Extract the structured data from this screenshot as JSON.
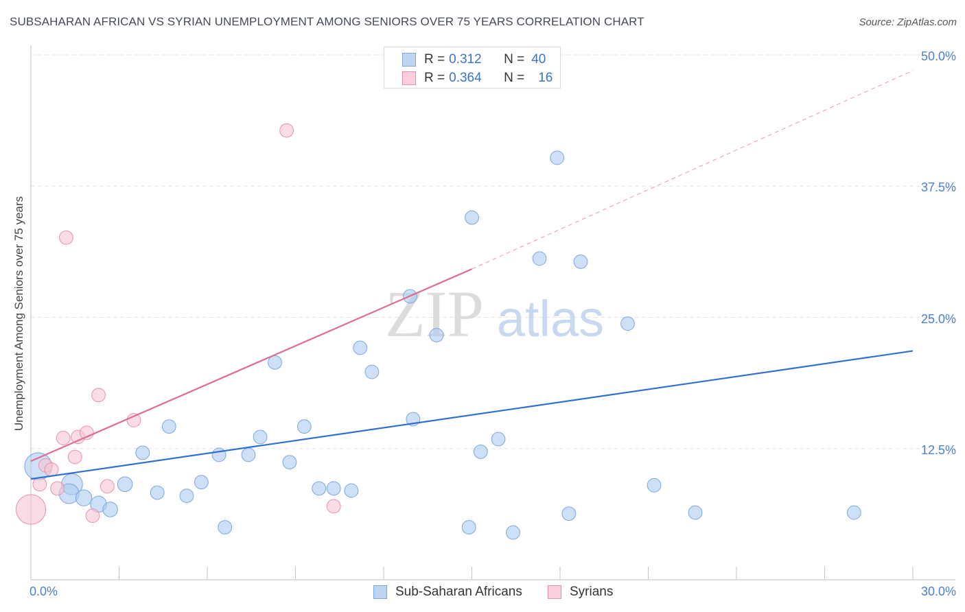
{
  "chart_data": {
    "type": "scatter",
    "title": "SUBSAHARAN AFRICAN VS SYRIAN UNEMPLOYMENT AMONG SENIORS OVER 75 YEARS CORRELATION CHART",
    "source": "Source: ZipAtlas.com",
    "xlabel": "",
    "ylabel": "Unemployment Among Seniors over 75 years",
    "xlim": [
      0,
      30
    ],
    "ylim": [
      0,
      50
    ],
    "x_tick_labels": {
      "min": "0.0%",
      "max": "30.0%"
    },
    "y_tick_labels": [
      {
        "value": 12.5,
        "label": "12.5%"
      },
      {
        "value": 25.0,
        "label": "25.0%"
      },
      {
        "value": 37.5,
        "label": "37.5%"
      },
      {
        "value": 50.0,
        "label": "50.0%"
      }
    ],
    "watermark": {
      "zip": "ZIP",
      "atlas": "atlas"
    },
    "legend_top": [
      {
        "r_label": "R =",
        "r_value": "0.312",
        "n_label": "N =",
        "n_value": "40"
      },
      {
        "r_label": "R =",
        "r_value": "0.364",
        "n_label": "N =",
        "n_value": "16"
      }
    ],
    "series": [
      {
        "name": "Sub-Saharan Africans",
        "color": "#aecbf0",
        "stroke": "#7aa6dc",
        "line_color": "#2f6fcf",
        "trend": {
          "x0": 0,
          "y0": 9.6,
          "x1": 30,
          "y1": 21.8,
          "dashed_to": null
        },
        "points": [
          [
            0.25,
            10.8,
            2.2
          ],
          [
            1.4,
            9.1,
            1.7
          ],
          [
            1.3,
            8.2,
            1.6
          ],
          [
            1.8,
            7.8,
            1.3
          ],
          [
            2.3,
            7.2,
            1.3
          ],
          [
            2.7,
            6.7,
            1.2
          ],
          [
            3.2,
            9.1,
            1.2
          ],
          [
            3.8,
            12.1,
            1.1
          ],
          [
            4.3,
            8.3,
            1.1
          ],
          [
            4.7,
            14.6,
            1.1
          ],
          [
            5.3,
            8.0,
            1.1
          ],
          [
            5.8,
            9.3,
            1.1
          ],
          [
            6.4,
            11.9,
            1.1
          ],
          [
            6.6,
            5.0,
            1.1
          ],
          [
            7.4,
            11.9,
            1.1
          ],
          [
            7.8,
            13.6,
            1.1
          ],
          [
            8.3,
            20.7,
            1.1
          ],
          [
            8.8,
            11.2,
            1.1
          ],
          [
            9.3,
            14.6,
            1.1
          ],
          [
            9.8,
            8.7,
            1.1
          ],
          [
            10.3,
            8.7,
            1.1
          ],
          [
            10.9,
            8.5,
            1.1
          ],
          [
            11.2,
            22.1,
            1.1
          ],
          [
            11.6,
            19.8,
            1.1
          ],
          [
            12.9,
            27.0,
            1.1
          ],
          [
            13.0,
            15.3,
            1.1
          ],
          [
            13.8,
            23.3,
            1.1
          ],
          [
            15.0,
            34.5,
            1.1
          ],
          [
            14.9,
            5.0,
            1.1
          ],
          [
            15.3,
            12.2,
            1.1
          ],
          [
            15.9,
            13.4,
            1.1
          ],
          [
            16.4,
            4.5,
            1.1
          ],
          [
            17.3,
            30.6,
            1.1
          ],
          [
            17.9,
            40.2,
            1.1
          ],
          [
            18.3,
            6.3,
            1.1
          ],
          [
            18.7,
            30.3,
            1.1
          ],
          [
            20.3,
            24.4,
            1.1
          ],
          [
            21.2,
            9.0,
            1.1
          ],
          [
            22.6,
            6.4,
            1.1
          ],
          [
            28.0,
            6.4,
            1.1
          ]
        ]
      },
      {
        "name": "Syrians",
        "color": "#f7c4d2",
        "stroke": "#e88fab",
        "line_color": "#e06a93",
        "trend": {
          "x0": 0,
          "y0": 11.3,
          "x1": 15,
          "y1": 29.6,
          "dashed_to": {
            "x": 30,
            "y": 48.5
          }
        },
        "points": [
          [
            0.0,
            6.7,
            2.4
          ],
          [
            0.3,
            9.1,
            1.1
          ],
          [
            0.5,
            10.9,
            1.1
          ],
          [
            0.7,
            10.5,
            1.1
          ],
          [
            0.9,
            8.7,
            1.1
          ],
          [
            1.1,
            13.5,
            1.1
          ],
          [
            1.2,
            32.6,
            1.1
          ],
          [
            1.5,
            11.7,
            1.1
          ],
          [
            1.6,
            13.6,
            1.1
          ],
          [
            1.9,
            14.0,
            1.1
          ],
          [
            2.1,
            6.1,
            1.1
          ],
          [
            2.3,
            17.6,
            1.1
          ],
          [
            2.6,
            8.9,
            1.1
          ],
          [
            3.5,
            15.2,
            1.1
          ],
          [
            8.7,
            42.8,
            1.1
          ],
          [
            10.3,
            7.0,
            1.1
          ]
        ]
      }
    ]
  }
}
